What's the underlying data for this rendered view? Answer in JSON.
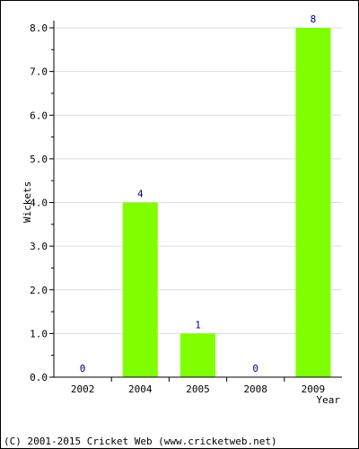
{
  "chart_data": {
    "type": "bar",
    "categories": [
      "2002",
      "2004",
      "2005",
      "2008",
      "2009"
    ],
    "values": [
      0,
      4,
      1,
      0,
      8
    ],
    "data_labels": [
      "0",
      "4",
      "1",
      "0",
      "8"
    ],
    "xlabel": "Year",
    "ylabel": "Wickets",
    "ylim": [
      0,
      8
    ],
    "yticks": [
      "0.0",
      "1.0",
      "2.0",
      "3.0",
      "4.0",
      "5.0",
      "6.0",
      "7.0",
      "8.0"
    ],
    "grid": true,
    "bar_color": "#80ff00",
    "label_color": "#000080"
  },
  "footer": "(C) 2001-2015 Cricket Web (www.cricketweb.net)"
}
